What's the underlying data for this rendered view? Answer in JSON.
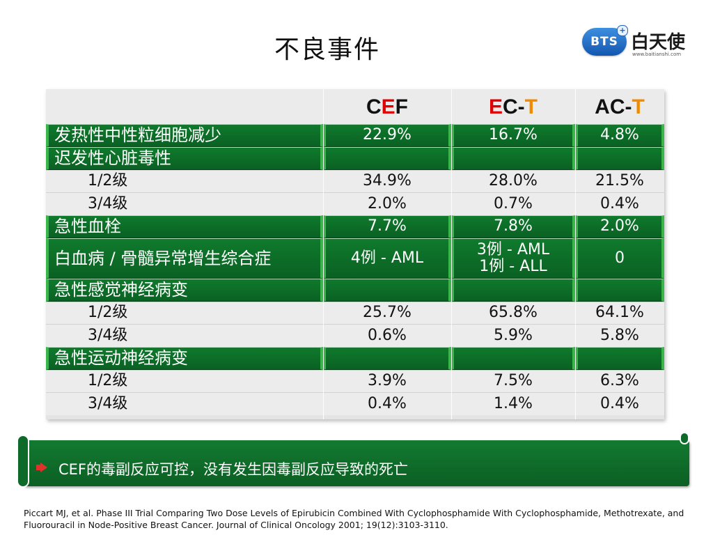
{
  "title": "不良事件",
  "logo": {
    "badge": "BTS",
    "name": "白天使",
    "url": "www.baitianshi.com"
  },
  "table": {
    "header": [
      {
        "parts": [
          {
            "t": "C",
            "c": "black"
          },
          {
            "t": "E",
            "c": "red"
          },
          {
            "t": "F",
            "c": "black"
          }
        ]
      },
      {
        "parts": [
          {
            "t": "E",
            "c": "red"
          },
          {
            "t": "C-",
            "c": "black"
          },
          {
            "t": "T",
            "c": "orange"
          }
        ]
      },
      {
        "parts": [
          {
            "t": "AC-",
            "c": "black"
          },
          {
            "t": "T",
            "c": "orange"
          }
        ]
      }
    ],
    "rows": [
      {
        "style": "green",
        "label": "发热性中性粒细胞减少",
        "values": [
          "22.9%",
          "16.7%",
          "4.8%"
        ]
      },
      {
        "style": "green",
        "label": "迟发性心脏毒性",
        "values": [
          "",
          "",
          ""
        ]
      },
      {
        "style": "plain",
        "label": "1/2级",
        "values": [
          "34.9%",
          "28.0%",
          "21.5%"
        ]
      },
      {
        "style": "plain",
        "label": "3/4级",
        "values": [
          "2.0%",
          "0.7%",
          "0.4%"
        ]
      },
      {
        "style": "green",
        "label": "急性血栓",
        "values": [
          "7.7%",
          "7.8%",
          "2.0%"
        ]
      },
      {
        "style": "green",
        "label": "白血病 / 骨髓异常增生综合症",
        "values": [
          "4例 - AML",
          "3例 - AML\n1例 - ALL",
          "0"
        ]
      },
      {
        "style": "green",
        "label": "急性感觉神经病变",
        "values": [
          "",
          "",
          ""
        ]
      },
      {
        "style": "plain",
        "label": "1/2级",
        "values": [
          "25.7%",
          "65.8%",
          "64.1%"
        ]
      },
      {
        "style": "plain",
        "label": "3/4级",
        "values": [
          "0.6%",
          "5.9%",
          "5.8%"
        ]
      },
      {
        "style": "green",
        "label": "急性运动神经病变",
        "values": [
          "",
          "",
          ""
        ]
      },
      {
        "style": "plain",
        "label": "1/2级",
        "values": [
          "3.9%",
          "7.5%",
          "6.3%"
        ]
      },
      {
        "style": "plain",
        "label": "3/4级",
        "values": [
          "0.4%",
          "1.4%",
          "0.4%"
        ]
      }
    ]
  },
  "banner": {
    "text": "CEF的毒副反应可控，没有发生因毒副反应导致的死亡"
  },
  "citation": "Piccart MJ, et al. Phase III Trial Comparing Two Dose Levels of Epirubicin Combined With Cyclophosphamide With Cyclophosphamide, Methotrexate, and Fluorouracil in Node-Positive Breast Cancer. Journal of Clinical Oncology 2001; 19(12):3103-3110.",
  "colors": {
    "green": "#0b6a27",
    "red": "#e00000",
    "orange": "#f08a00"
  }
}
